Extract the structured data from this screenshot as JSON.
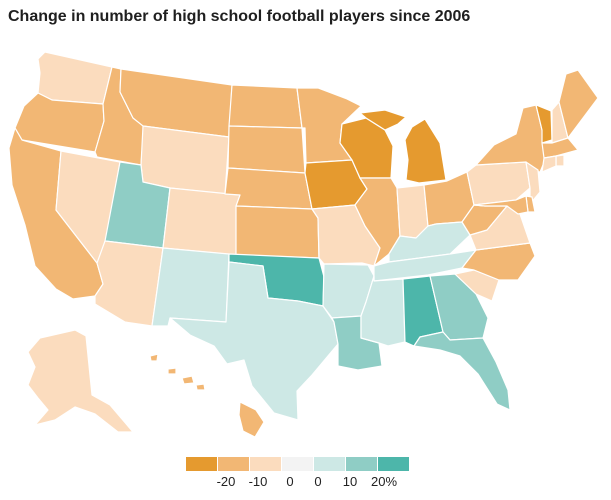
{
  "title": "Change in number of high school football players since 2006",
  "colors": {
    "dark_orange": "#e59a2f",
    "mid_orange": "#f2b774",
    "light_orange": "#fbdcbe",
    "neutral": "#f3f3f3",
    "light_teal": "#cde8e5",
    "mid_teal": "#8fcdc5",
    "dark_teal": "#4db6aa"
  },
  "legend": {
    "swatches": [
      {
        "name": "dark-orange",
        "color": "#e59a2f"
      },
      {
        "name": "mid-orange",
        "color": "#f2b774"
      },
      {
        "name": "light-orange",
        "color": "#fbdcbe"
      },
      {
        "name": "neutral",
        "color": "#f3f3f3"
      },
      {
        "name": "light-teal",
        "color": "#cde8e5"
      },
      {
        "name": "mid-teal",
        "color": "#8fcdc5"
      },
      {
        "name": "dark-teal",
        "color": "#4db6aa"
      }
    ],
    "ticks": [
      "-20",
      "-10",
      "0",
      "0",
      "10",
      "20%"
    ]
  },
  "states": [
    {
      "code": "WA",
      "category": "light_orange"
    },
    {
      "code": "OR",
      "category": "mid_orange"
    },
    {
      "code": "CA",
      "category": "mid_orange"
    },
    {
      "code": "NV",
      "category": "light_orange"
    },
    {
      "code": "ID",
      "category": "mid_orange"
    },
    {
      "code": "MT",
      "category": "mid_orange"
    },
    {
      "code": "WY",
      "category": "light_orange"
    },
    {
      "code": "UT",
      "category": "mid_teal"
    },
    {
      "code": "AZ",
      "category": "light_orange"
    },
    {
      "code": "CO",
      "category": "light_orange"
    },
    {
      "code": "NM",
      "category": "light_teal"
    },
    {
      "code": "ND",
      "category": "mid_orange"
    },
    {
      "code": "SD",
      "category": "mid_orange"
    },
    {
      "code": "NE",
      "category": "mid_orange"
    },
    {
      "code": "KS",
      "category": "mid_orange"
    },
    {
      "code": "OK",
      "category": "dark_teal"
    },
    {
      "code": "TX",
      "category": "light_teal"
    },
    {
      "code": "MN",
      "category": "mid_orange"
    },
    {
      "code": "IA",
      "category": "dark_orange"
    },
    {
      "code": "MO",
      "category": "light_orange"
    },
    {
      "code": "AR",
      "category": "light_teal"
    },
    {
      "code": "LA",
      "category": "mid_teal"
    },
    {
      "code": "WI",
      "category": "dark_orange"
    },
    {
      "code": "IL",
      "category": "mid_orange"
    },
    {
      "code": "MI",
      "category": "dark_orange"
    },
    {
      "code": "IN",
      "category": "light_orange"
    },
    {
      "code": "OH",
      "category": "mid_orange"
    },
    {
      "code": "KY",
      "category": "light_teal"
    },
    {
      "code": "TN",
      "category": "light_teal"
    },
    {
      "code": "MS",
      "category": "light_teal"
    },
    {
      "code": "AL",
      "category": "dark_teal"
    },
    {
      "code": "GA",
      "category": "mid_teal"
    },
    {
      "code": "FL",
      "category": "mid_teal"
    },
    {
      "code": "SC",
      "category": "light_orange"
    },
    {
      "code": "NC",
      "category": "mid_orange"
    },
    {
      "code": "VA",
      "category": "light_orange"
    },
    {
      "code": "WV",
      "category": "mid_orange"
    },
    {
      "code": "PA",
      "category": "light_orange"
    },
    {
      "code": "NY",
      "category": "mid_orange"
    },
    {
      "code": "VT",
      "category": "dark_orange"
    },
    {
      "code": "NH",
      "category": "light_orange"
    },
    {
      "code": "ME",
      "category": "mid_orange"
    },
    {
      "code": "MA",
      "category": "mid_orange"
    },
    {
      "code": "CT",
      "category": "light_orange"
    },
    {
      "code": "RI",
      "category": "light_orange"
    },
    {
      "code": "NJ",
      "category": "light_orange"
    },
    {
      "code": "DE",
      "category": "mid_orange"
    },
    {
      "code": "MD",
      "category": "mid_orange"
    },
    {
      "code": "AK",
      "category": "light_orange"
    },
    {
      "code": "HI",
      "category": "mid_orange"
    }
  ]
}
